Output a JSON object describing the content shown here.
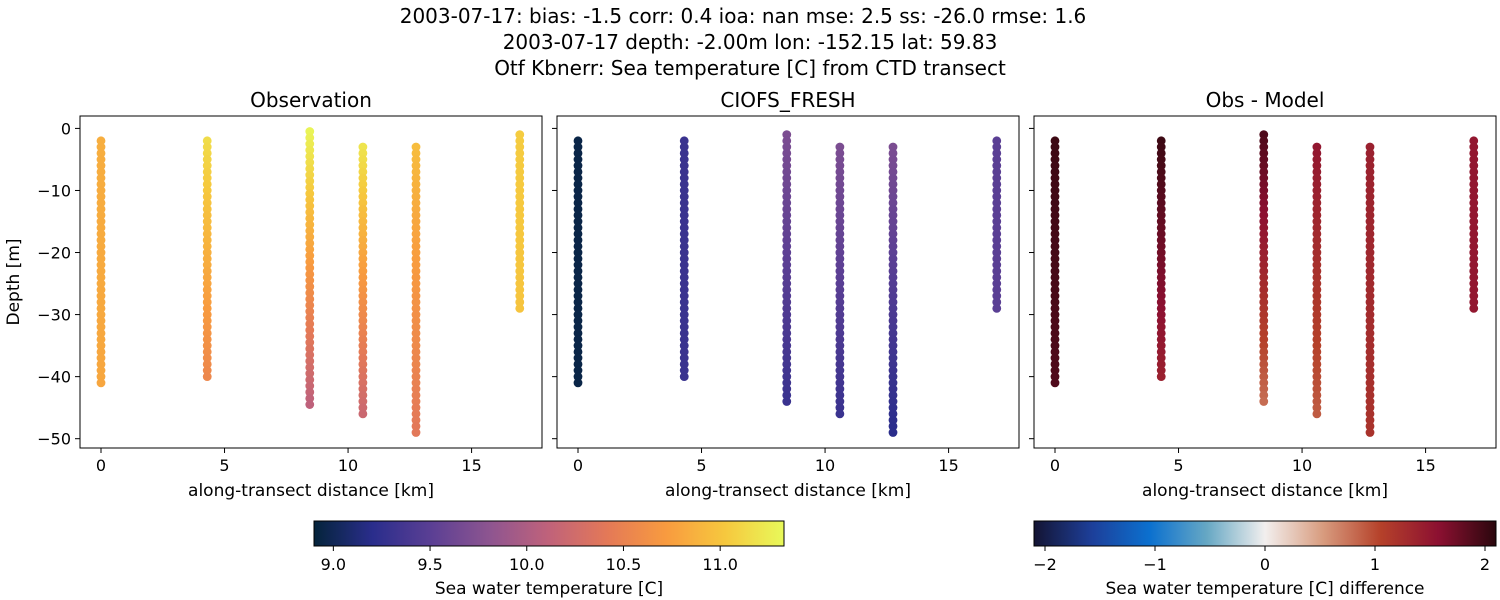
{
  "figure": {
    "title_lines": [
      "2003-07-17: bias: -1.5  corr: 0.4  ioa: nan  mse: 2.5  ss: -26.0  rmse: 1.6",
      "2003-07-17 depth: -2.00m lon: -152.15 lat: 59.83",
      "Otf Kbnerr: Sea temperature [C] from CTD transect"
    ]
  },
  "chart_data": [
    {
      "type": "scatter",
      "title": "Observation",
      "xlabel": "along-transect distance [km]",
      "ylabel": "Depth [m]",
      "xlim": [
        -0.85,
        17.85
      ],
      "ylim": [
        -51.5,
        2.0
      ],
      "xticks": [
        0,
        5,
        10,
        15
      ],
      "yticks": [
        0,
        -10,
        -20,
        -30,
        -40,
        -50
      ],
      "colormap": "thermal",
      "clim": [
        8.9,
        11.33
      ],
      "profiles": [
        {
          "x": 0.0,
          "top": -2,
          "bottom": -41,
          "values_top_to_bottom": [
            10.85,
            10.8
          ]
        },
        {
          "x": 4.3,
          "top": -2,
          "bottom": -40,
          "values_top_to_bottom": [
            11.15,
            10.55
          ]
        },
        {
          "x": 8.45,
          "top": -0.5,
          "bottom": -44,
          "values_top_to_bottom": [
            11.3,
            10.1
          ]
        },
        {
          "x": 10.6,
          "top": -3,
          "bottom": -46,
          "values_top_to_bottom": [
            11.2,
            10.2
          ]
        },
        {
          "x": 12.75,
          "top": -3,
          "bottom": -49,
          "values_top_to_bottom": [
            10.95,
            10.4
          ]
        },
        {
          "x": 16.95,
          "top": -1,
          "bottom": -29,
          "values_top_to_bottom": [
            11.05,
            11.0
          ]
        }
      ]
    },
    {
      "type": "scatter",
      "title": "CIOFS_FRESH",
      "xlabel": "along-transect distance [km]",
      "xlim": [
        -0.85,
        17.85
      ],
      "ylim": [
        -51.5,
        2.0
      ],
      "xticks": [
        0,
        5,
        10,
        15
      ],
      "colormap": "thermal",
      "clim": [
        8.9,
        11.33
      ],
      "profiles": [
        {
          "x": 0.0,
          "top": -2,
          "bottom": -41,
          "values_top_to_bottom": [
            8.95,
            8.95
          ]
        },
        {
          "x": 4.3,
          "top": -2,
          "bottom": -40,
          "values_top_to_bottom": [
            9.3,
            9.3
          ]
        },
        {
          "x": 8.45,
          "top": -1,
          "bottom": -44,
          "values_top_to_bottom": [
            9.7,
            9.3
          ]
        },
        {
          "x": 10.6,
          "top": -3,
          "bottom": -46,
          "values_top_to_bottom": [
            9.7,
            9.3
          ]
        },
        {
          "x": 12.75,
          "top": -3,
          "bottom": -49,
          "values_top_to_bottom": [
            9.7,
            9.2
          ]
        },
        {
          "x": 16.95,
          "top": -2,
          "bottom": -29,
          "values_top_to_bottom": [
            9.5,
            9.5
          ]
        }
      ]
    },
    {
      "type": "scatter",
      "title": "Obs - Model",
      "xlabel": "along-transect distance [km]",
      "xlim": [
        -0.85,
        17.85
      ],
      "ylim": [
        -51.5,
        2.0
      ],
      "xticks": [
        0,
        5,
        10,
        15
      ],
      "colormap": "diverging",
      "clim": [
        -2.1,
        2.1
      ],
      "profiles": [
        {
          "x": 0.0,
          "top": -2,
          "bottom": -41,
          "values_top_to_bottom": [
            2.0,
            1.9
          ]
        },
        {
          "x": 4.3,
          "top": -2,
          "bottom": -40,
          "values_top_to_bottom": [
            2.0,
            1.4
          ]
        },
        {
          "x": 8.45,
          "top": -1,
          "bottom": -44,
          "values_top_to_bottom": [
            1.9,
            0.8
          ]
        },
        {
          "x": 10.6,
          "top": -3,
          "bottom": -46,
          "values_top_to_bottom": [
            1.5,
            0.9
          ]
        },
        {
          "x": 12.75,
          "top": -3,
          "bottom": -49,
          "values_top_to_bottom": [
            1.4,
            1.2
          ]
        },
        {
          "x": 16.95,
          "top": -2,
          "bottom": -29,
          "values_top_to_bottom": [
            1.5,
            1.5
          ]
        }
      ]
    }
  ],
  "colorbars": [
    {
      "label": "Sea water temperature [C]",
      "colormap": "thermal",
      "range": [
        8.9,
        11.33
      ],
      "ticks": [
        9.0,
        9.5,
        10.0,
        10.5,
        11.0
      ],
      "tick_labels": [
        "9.0",
        "9.5",
        "10.0",
        "10.5",
        "11.0"
      ]
    },
    {
      "label": "Sea water temperature [C] difference",
      "colormap": "diverging",
      "range": [
        -2.1,
        2.1
      ],
      "ticks": [
        -2,
        -1,
        0,
        1,
        2
      ],
      "tick_labels": [
        "−2",
        "−1",
        "0",
        "1",
        "2"
      ]
    }
  ],
  "colormaps": {
    "thermal": [
      "#04243a",
      "#2a2d8c",
      "#5b3f94",
      "#8e5590",
      "#c0627a",
      "#e47957",
      "#f89b3f",
      "#f6c83e",
      "#e8f95a"
    ],
    "diverging": [
      "#141433",
      "#1d3f99",
      "#0b70cf",
      "#67a8c4",
      "#f2efee",
      "#d89c7f",
      "#b5412a",
      "#8c1031",
      "#2a070d"
    ]
  }
}
